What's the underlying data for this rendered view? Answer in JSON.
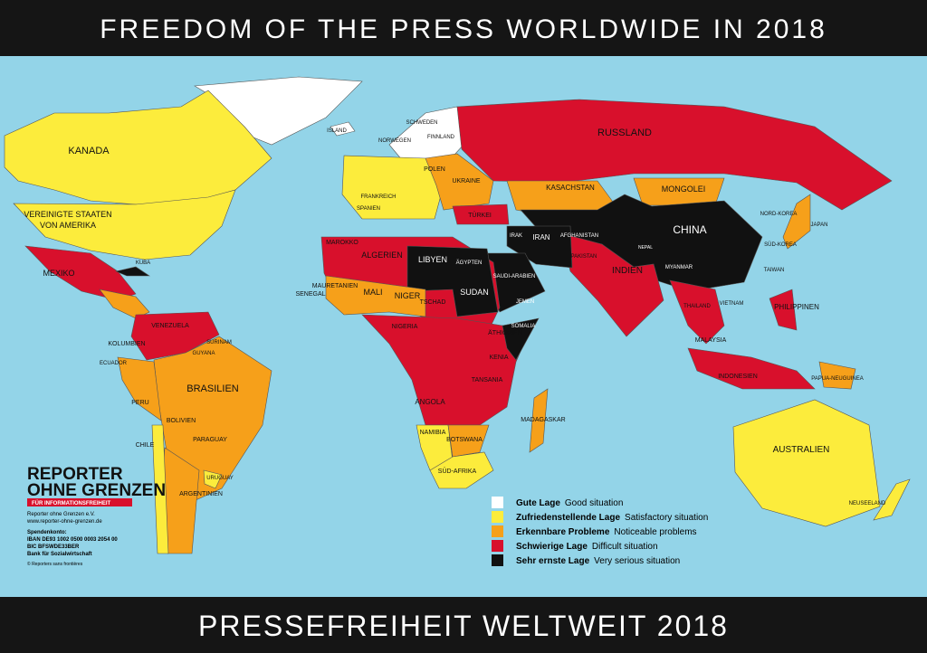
{
  "header": {
    "title": "FREEDOM OF THE PRESS WORLDWIDE IN 2018"
  },
  "footer": {
    "title": "PRESSEFREIHEIT WELTWEIT 2018"
  },
  "legend": [
    {
      "label": "Gute Lage",
      "translation": "Good situation",
      "color": "#ffffff"
    },
    {
      "label": "Zufriedenstellende Lage",
      "translation": "Satisfactory situation",
      "color": "#fcec3c"
    },
    {
      "label": "Erkennbare Probleme",
      "translation": "Noticeable problems",
      "color": "#f6a01a"
    },
    {
      "label": "Schwierige Lage",
      "translation": "Difficult situation",
      "color": "#d8102c"
    },
    {
      "label": "Sehr ernste Lage",
      "translation": "Very serious situation",
      "color": "#111111"
    }
  ],
  "publisher": {
    "logo_line1": "REPORTER",
    "logo_line2": "OHNE GRENZEN",
    "logo_tagline": "FÜR INFORMATIONSFREIHEIT",
    "name": "Reporter ohne Grenzen e.V.",
    "website": "www.reporter-ohne-grenzen.de",
    "account_heading": "Spendenkonto:",
    "iban": "IBAN DE93 1002 0500 0003 2054 00",
    "bic": "BIC BFSWDE33BER",
    "bank": "Bank für Sozialwirtschaft",
    "copyright": "© Reporters sans frontières"
  },
  "labels": [
    "KANADA",
    "VEREINIGTE STAATEN",
    "VON AMERIKA",
    "MEXIKO",
    "KUBA",
    "KOLUMBIEN",
    "VENEZUELA",
    "ECUADOR",
    "BRASILIEN",
    "PERU",
    "BOLIVIEN",
    "PARAGUAY",
    "CHILE",
    "URUGUAY",
    "ARGENTINIEN",
    "GUYANA",
    "SURINAM",
    "RUSSLAND",
    "KASACHSTAN",
    "MONGOLEI",
    "CHINA",
    "INDIEN",
    "NEPAL",
    "NORD-KOREA",
    "SÜD-KOREA",
    "JAPAN",
    "TAIWAN",
    "MYANMAR",
    "THAILAND",
    "VIETNAM",
    "PHILIPPINEN",
    "MALAYSIA",
    "INDONESIEN",
    "PAPUA-NEUGUINEA",
    "AUSTRALIEN",
    "NEUSEELAND",
    "IRAN",
    "IRAK",
    "SAUDI-ARABIEN",
    "JEMEN",
    "AFGHANISTAN",
    "PAKISTAN",
    "TÜRKEI",
    "UKRAINE",
    "POLEN",
    "FINNLAND",
    "SCHWEDEN",
    "NORWEGEN",
    "ISLAND",
    "FRANKREICH",
    "SPANIEN",
    "MAROKKO",
    "ALGERIEN",
    "LIBYEN",
    "ÄGYPTEN",
    "SUDAN",
    "TSCHAD",
    "MAURETANIEN",
    "SENEGAL",
    "MALI",
    "NIGER",
    "NIGERIA",
    "ÄTHIOPIEN",
    "SOMALIA",
    "KENIA",
    "TANSANIA",
    "ANGOLA",
    "NAMIBIA",
    "BOTSWANA",
    "SÜD-AFRIKA",
    "MADAGASKAR"
  ]
}
